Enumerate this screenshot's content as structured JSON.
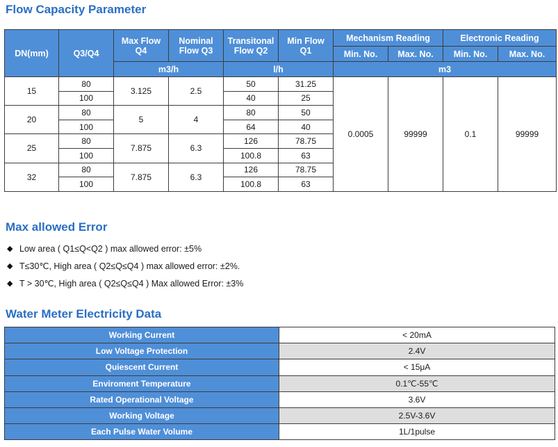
{
  "flow_section": {
    "title": "Flow Capacity Parameter",
    "headers": {
      "dn": "DN(mm)",
      "q3q4": "Q3/Q4",
      "max_flow_q4": [
        "Max Flow",
        "Q4"
      ],
      "nominal_flow_q3": [
        "Nominal",
        "Flow Q3"
      ],
      "transitional_flow_q2": [
        "Transitonal",
        "Flow Q2"
      ],
      "min_flow_q1": [
        "Min Flow",
        "Q1"
      ],
      "mechanism_reading": "Mechanism Reading",
      "electronic_reading": "Electronic Reading",
      "mech_min": "Min. No.",
      "mech_max": "Max. No.",
      "elec_min": "Min. No.",
      "elec_max": "Max. No.",
      "unit_m3h": "m3/h",
      "unit_lh": "l/h",
      "unit_m3": "m3"
    },
    "groups": [
      {
        "dn": "15",
        "q4": "3.125",
        "q3": "2.5",
        "rows": [
          {
            "ratio": "80",
            "q2": "50",
            "q1": "31.25"
          },
          {
            "ratio": "100",
            "q2": "40",
            "q1": "25"
          }
        ]
      },
      {
        "dn": "20",
        "q4": "5",
        "q3": "4",
        "rows": [
          {
            "ratio": "80",
            "q2": "80",
            "q1": "50"
          },
          {
            "ratio": "100",
            "q2": "64",
            "q1": "40"
          }
        ]
      },
      {
        "dn": "25",
        "q4": "7.875",
        "q3": "6.3",
        "rows": [
          {
            "ratio": "80",
            "q2": "126",
            "q1": "78.75"
          },
          {
            "ratio": "100",
            "q2": "100.8",
            "q1": "63"
          }
        ]
      },
      {
        "dn": "32",
        "q4": "7.875",
        "q3": "6.3",
        "rows": [
          {
            "ratio": "80",
            "q2": "126",
            "q1": "78.75"
          },
          {
            "ratio": "100",
            "q2": "100.8",
            "q1": "63"
          }
        ]
      }
    ],
    "readings": {
      "mech_min": "0.0005",
      "mech_max": "99999",
      "elec_min": "0.1",
      "elec_max": "99999"
    }
  },
  "error_section": {
    "title": "Max allowed Error",
    "bullet_icon": "diamond-bullet-icon",
    "items": [
      "Low area ( Q1≤Q<Q2 ) max allowed error: ±5%",
      "T≤30℃, High area ( Q2≤Q≤Q4 ) max allowed error: ±2%.",
      "T > 30℃, High area ( Q2≤Q≤Q4 ) Max allowed Error: ±3%"
    ]
  },
  "electricity_section": {
    "title": "Water Meter Electricity Data",
    "rows": [
      {
        "label": "Working Current",
        "value": "< 20mA"
      },
      {
        "label": "Low Voltage Protection",
        "value": "2.4V"
      },
      {
        "label": "Quiescent Current",
        "value": "< 15μA"
      },
      {
        "label": "Enviroment Temperature",
        "value": "0.1℃-55℃"
      },
      {
        "label": "Rated Operational Voltage",
        "value": "3.6V"
      },
      {
        "label": "Working Voltage",
        "value": "2.5V-3.6V"
      },
      {
        "label": "Each Pulse Water Volume",
        "value": "1L/1pulse"
      }
    ]
  },
  "colors": {
    "title_blue": "#2a6fc2",
    "header_blue": "#4f8fd8",
    "alt_row_gray": "#dedede"
  }
}
